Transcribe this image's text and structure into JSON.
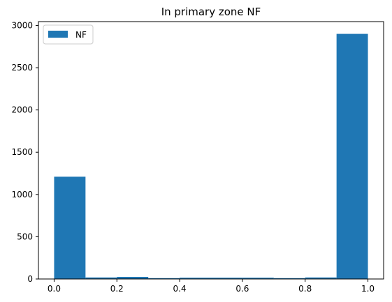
{
  "chart_data": {
    "type": "bar",
    "subtype": "histogram",
    "title": "In primary zone NF",
    "xlabel": "",
    "ylabel": "",
    "xlim": [
      -0.05,
      1.05
    ],
    "ylim": [
      0,
      3045
    ],
    "x_ticks": [
      0.0,
      0.2,
      0.4,
      0.6,
      0.8,
      1.0
    ],
    "x_tick_labels": [
      "0.0",
      "0.2",
      "0.4",
      "0.6",
      "0.8",
      "1.0"
    ],
    "y_ticks": [
      0,
      500,
      1000,
      1500,
      2000,
      2500,
      3000
    ],
    "y_tick_labels": [
      "0",
      "500",
      "1000",
      "1500",
      "2000",
      "2500",
      "3000"
    ],
    "bin_edges": [
      0.0,
      0.1,
      0.2,
      0.3,
      0.4,
      0.5,
      0.6,
      0.7,
      0.8,
      0.9,
      1.0
    ],
    "series": [
      {
        "name": "NF",
        "color": "#1f77b4",
        "values": [
          1210,
          18,
          25,
          10,
          15,
          15,
          15,
          10,
          18,
          2900
        ]
      }
    ],
    "grid": false,
    "legend": {
      "position": "top-left",
      "entries": [
        "NF"
      ]
    }
  }
}
